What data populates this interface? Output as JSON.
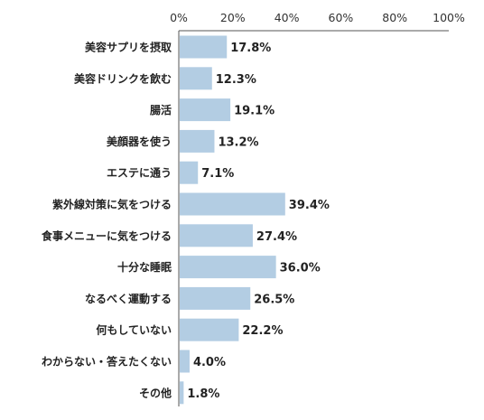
{
  "chart_data": {
    "type": "bar",
    "orientation": "horizontal",
    "title": "",
    "xlabel": "",
    "ylabel": "",
    "xlim": [
      0,
      100
    ],
    "x_ticks": [
      "0%",
      "20%",
      "40%",
      "60%",
      "80%",
      "100%"
    ],
    "grid": false,
    "bar_color": "#b3cde3",
    "categories": [
      "美容サプリを摂取",
      "美容ドリンクを飲む",
      "腸活",
      "美顔器を使う",
      "エステに通う",
      "紫外線対策に気をつける",
      "食事メニューに気をつける",
      "十分な睡眠",
      "なるべく運動する",
      "何もしていない",
      "わからない・答えたくない",
      "その他"
    ],
    "values": [
      17.8,
      12.3,
      19.1,
      13.2,
      7.1,
      39.4,
      27.4,
      36.0,
      26.5,
      22.2,
      4.0,
      1.8
    ],
    "value_labels": [
      "17.8%",
      "12.3%",
      "19.1%",
      "13.2%",
      "7.1%",
      "39.4%",
      "27.4%",
      "36.0%",
      "26.5%",
      "22.2%",
      "4.0%",
      "1.8%"
    ]
  }
}
